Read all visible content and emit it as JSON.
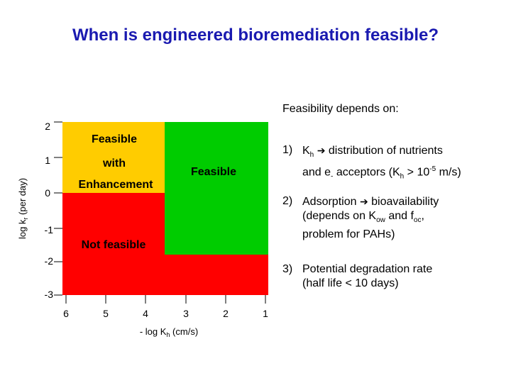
{
  "title": "When is engineered bioremediation feasible?",
  "chart": {
    "ylabel": "log k",
    "ylabel_sub": "r",
    "ylabel_suffix": " (per day)",
    "xlabel": "- log K",
    "xlabel_sub": "h",
    "xlabel_suffix": " (cm/s)",
    "y_ticks": [
      "2",
      "1",
      "0",
      "-1",
      "-2",
      "-3"
    ],
    "x_ticks": [
      "6",
      "5",
      "4",
      "3",
      "2",
      "1"
    ],
    "regions": {
      "feasible_with_enhancement": {
        "line1": "Feasible",
        "line2": "with",
        "line3": "Enhancement",
        "color": "#ffcc00"
      },
      "feasible": {
        "label": "Feasible",
        "color": "#00cc00"
      },
      "not_feasible": {
        "label": "Not feasible",
        "color": "#ff0000"
      }
    }
  },
  "notes": {
    "heading": "Feasibility depends on:",
    "items": [
      {
        "num": "1)",
        "line1_a": "K",
        "line1_sub": "h",
        "line1_b": " distribution of nutrients",
        "line2_a": "and e",
        "line2_sup": "-",
        "line2_b": " acceptors (K",
        "line2_sub": "h",
        "line2_c": " > 10",
        "line2_sup2": "-5",
        "line2_d": " m/s)"
      },
      {
        "num": "2)",
        "line1_a": "Adsorption ",
        "line1_b": " bioavailability",
        "line2_a": "(depends on K",
        "line2_sub": "ow",
        "line2_b": " and  f",
        "line2_sub2": "oc",
        "line2_c": ",",
        "line3": "problem for PAHs)"
      },
      {
        "num": "3)",
        "line1": "Potential degradation rate",
        "line2": "(half life < 10 days)"
      }
    ]
  }
}
